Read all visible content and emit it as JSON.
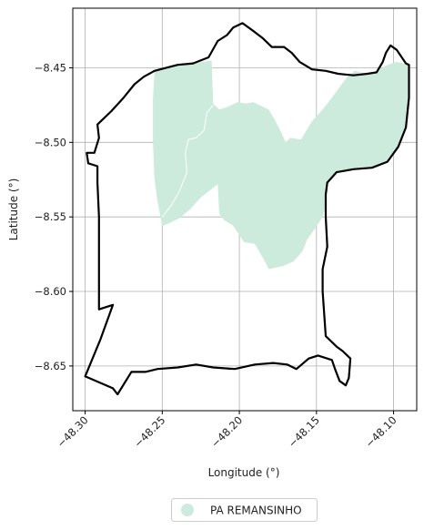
{
  "chart_data": {
    "type": "map",
    "xlabel": "Longitude (°)",
    "ylabel": "Latitude (°)",
    "xlim": [
      -48.308,
      -48.085
    ],
    "ylim": [
      -8.68,
      -8.41
    ],
    "x_ticks": [
      -48.3,
      -48.25,
      -48.2,
      -48.15,
      -48.1
    ],
    "x_tick_labels": [
      "−48.30",
      "−48.25",
      "−48.20",
      "−48.15",
      "−48.10"
    ],
    "y_ticks": [
      -8.45,
      -8.5,
      -8.55,
      -8.6,
      -8.65
    ],
    "y_tick_labels": [
      "−8.45",
      "−8.50",
      "−8.55",
      "−8.60",
      "−8.65"
    ],
    "grid": true,
    "legend_position": "bottom-center",
    "series": [
      {
        "name": "PA REMANSINHO",
        "color": "#cdebdd",
        "polygon": [
          [
            -48.255,
            -8.452
          ],
          [
            -48.24,
            -8.448
          ],
          [
            -48.23,
            -8.447
          ],
          [
            -48.218,
            -8.445
          ],
          [
            -48.217,
            -8.474
          ],
          [
            -48.213,
            -8.478
          ],
          [
            -48.207,
            -8.476
          ],
          [
            -48.201,
            -8.473
          ],
          [
            -48.196,
            -8.474
          ],
          [
            -48.191,
            -8.473
          ],
          [
            -48.185,
            -8.476
          ],
          [
            -48.181,
            -8.478
          ],
          [
            -48.177,
            -8.485
          ],
          [
            -48.173,
            -8.493
          ],
          [
            -48.17,
            -8.5
          ],
          [
            -48.167,
            -8.497
          ],
          [
            -48.16,
            -8.498
          ],
          [
            -48.153,
            -8.486
          ],
          [
            -48.146,
            -8.478
          ],
          [
            -48.14,
            -8.47
          ],
          [
            -48.135,
            -8.463
          ],
          [
            -48.13,
            -8.456
          ],
          [
            -48.125,
            -8.452
          ],
          [
            -48.118,
            -8.454
          ],
          [
            -48.111,
            -8.452
          ],
          [
            -48.104,
            -8.448
          ],
          [
            -48.098,
            -8.446
          ],
          [
            -48.09,
            -8.448
          ],
          [
            -48.09,
            -8.47
          ],
          [
            -48.092,
            -8.49
          ],
          [
            -48.097,
            -8.503
          ],
          [
            -48.104,
            -8.513
          ],
          [
            -48.114,
            -8.517
          ],
          [
            -48.126,
            -8.518
          ],
          [
            -48.137,
            -8.52
          ],
          [
            -48.143,
            -8.527
          ],
          [
            -48.144,
            -8.535
          ],
          [
            -48.144,
            -8.542
          ],
          [
            -48.146,
            -8.55
          ],
          [
            -48.151,
            -8.558
          ],
          [
            -48.156,
            -8.565
          ],
          [
            -48.159,
            -8.573
          ],
          [
            -48.165,
            -8.58
          ],
          [
            -48.172,
            -8.583
          ],
          [
            -48.181,
            -8.585
          ],
          [
            -48.185,
            -8.577
          ],
          [
            -48.19,
            -8.568
          ],
          [
            -48.197,
            -8.567
          ],
          [
            -48.204,
            -8.556
          ],
          [
            -48.21,
            -8.552
          ],
          [
            -48.213,
            -8.548
          ],
          [
            -48.214,
            -8.528
          ],
          [
            -48.225,
            -8.537
          ],
          [
            -48.232,
            -8.545
          ],
          [
            -48.239,
            -8.551
          ],
          [
            -48.245,
            -8.554
          ],
          [
            -48.25,
            -8.556
          ],
          [
            -48.253,
            -8.54
          ],
          [
            -48.255,
            -8.525
          ],
          [
            -48.256,
            -8.5
          ],
          [
            -48.256,
            -8.47
          ]
        ]
      }
    ],
    "internal_line": [
      [
        -48.217,
        -8.475
      ],
      [
        -48.221,
        -8.48
      ],
      [
        -48.223,
        -8.492
      ],
      [
        -48.228,
        -8.497
      ],
      [
        -48.233,
        -8.498
      ],
      [
        -48.235,
        -8.507
      ],
      [
        -48.234,
        -8.52
      ],
      [
        -48.239,
        -8.533
      ],
      [
        -48.244,
        -8.542
      ],
      [
        -48.25,
        -8.55
      ]
    ],
    "boundary": {
      "color": "#000000",
      "polygon": [
        [
          -48.255,
          -8.452
        ],
        [
          -48.24,
          -8.448
        ],
        [
          -48.23,
          -8.447
        ],
        [
          -48.22,
          -8.443
        ],
        [
          -48.214,
          -8.432
        ],
        [
          -48.208,
          -8.428
        ],
        [
          -48.204,
          -8.423
        ],
        [
          -48.198,
          -8.42
        ],
        [
          -48.19,
          -8.426
        ],
        [
          -48.185,
          -8.43
        ],
        [
          -48.179,
          -8.436
        ],
        [
          -48.171,
          -8.436
        ],
        [
          -48.166,
          -8.44
        ],
        [
          -48.161,
          -8.446
        ],
        [
          -48.153,
          -8.451
        ],
        [
          -48.144,
          -8.452
        ],
        [
          -48.136,
          -8.454
        ],
        [
          -48.126,
          -8.455
        ],
        [
          -48.117,
          -8.454
        ],
        [
          -48.111,
          -8.453
        ],
        [
          -48.107,
          -8.446
        ],
        [
          -48.105,
          -8.44
        ],
        [
          -48.102,
          -8.435
        ],
        [
          -48.098,
          -8.438
        ],
        [
          -48.096,
          -8.441
        ],
        [
          -48.092,
          -8.447
        ],
        [
          -48.09,
          -8.448
        ],
        [
          -48.09,
          -8.47
        ],
        [
          -48.092,
          -8.49
        ],
        [
          -48.097,
          -8.503
        ],
        [
          -48.104,
          -8.513
        ],
        [
          -48.114,
          -8.517
        ],
        [
          -48.126,
          -8.518
        ],
        [
          -48.137,
          -8.52
        ],
        [
          -48.143,
          -8.527
        ],
        [
          -48.144,
          -8.535
        ],
        [
          -48.144,
          -8.55
        ],
        [
          -48.143,
          -8.57
        ],
        [
          -48.146,
          -8.585
        ],
        [
          -48.146,
          -8.6
        ],
        [
          -48.145,
          -8.615
        ],
        [
          -48.144,
          -8.63
        ],
        [
          -48.137,
          -8.637
        ],
        [
          -48.133,
          -8.64
        ],
        [
          -48.128,
          -8.645
        ],
        [
          -48.129,
          -8.658
        ],
        [
          -48.131,
          -8.663
        ],
        [
          -48.135,
          -8.66
        ],
        [
          -48.138,
          -8.652
        ],
        [
          -48.14,
          -8.646
        ],
        [
          -48.149,
          -8.643
        ],
        [
          -48.155,
          -8.645
        ],
        [
          -48.163,
          -8.652
        ],
        [
          -48.169,
          -8.649
        ],
        [
          -48.178,
          -8.648
        ],
        [
          -48.19,
          -8.649
        ],
        [
          -48.203,
          -8.652
        ],
        [
          -48.217,
          -8.651
        ],
        [
          -48.228,
          -8.649
        ],
        [
          -48.24,
          -8.651
        ],
        [
          -48.253,
          -8.652
        ],
        [
          -48.261,
          -8.654
        ],
        [
          -48.27,
          -8.654
        ],
        [
          -48.279,
          -8.669
        ],
        [
          -48.282,
          -8.665
        ],
        [
          -48.3,
          -8.657
        ],
        [
          -48.29,
          -8.632
        ],
        [
          -48.282,
          -8.609
        ],
        [
          -48.291,
          -8.612
        ],
        [
          -48.291,
          -8.59
        ],
        [
          -48.291,
          -8.55
        ],
        [
          -48.292,
          -8.527
        ],
        [
          -48.292,
          -8.516
        ],
        [
          -48.298,
          -8.514
        ],
        [
          -48.299,
          -8.507
        ],
        [
          -48.294,
          -8.507
        ],
        [
          -48.291,
          -8.497
        ],
        [
          -48.292,
          -8.488
        ],
        [
          -48.283,
          -8.479
        ],
        [
          -48.275,
          -8.47
        ],
        [
          -48.268,
          -8.461
        ],
        [
          -48.262,
          -8.456
        ]
      ]
    }
  }
}
